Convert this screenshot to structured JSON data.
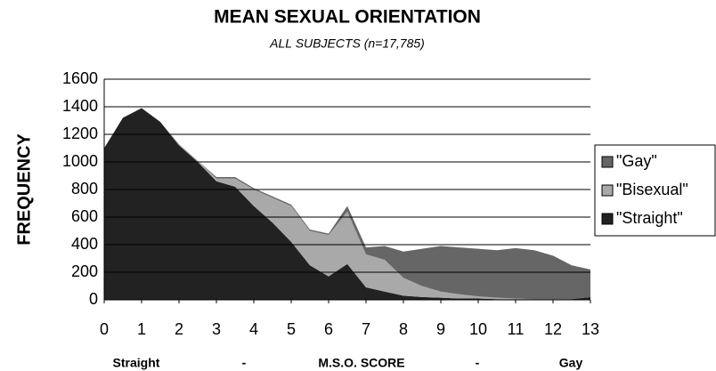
{
  "chart_data": {
    "type": "stacked_area",
    "title": "MEAN SEXUAL ORIENTATION",
    "subtitle": "ALL SUBJECTS (n=17,785)",
    "ylabel": "FREQUENCY",
    "xlabel": "M.S.O. SCORE",
    "annotations": [
      "Straight",
      "-",
      "-",
      "Gay"
    ],
    "x": [
      0,
      0.5,
      1,
      1.5,
      2,
      2.5,
      3,
      3.5,
      4,
      4.5,
      5,
      5.5,
      6,
      6.5,
      7,
      7.5,
      8,
      8.5,
      9,
      9.5,
      10,
      10.5,
      11,
      11.5,
      12,
      12.5,
      13
    ],
    "series": [
      {
        "name": "\"Straight\"",
        "color": "#222222",
        "values": [
          1100,
          1320,
          1390,
          1290,
          1120,
          1000,
          860,
          820,
          680,
          560,
          420,
          250,
          170,
          260,
          90,
          60,
          30,
          20,
          15,
          10,
          10,
          5,
          5,
          5,
          5,
          5,
          20
        ]
      },
      {
        "name": "\"Bisexual\"",
        "color": "#a9a9a9",
        "values": [
          0,
          0,
          0,
          0,
          10,
          10,
          20,
          60,
          120,
          180,
          260,
          250,
          300,
          380,
          240,
          230,
          130,
          80,
          45,
          30,
          15,
          10,
          5,
          0,
          0,
          0,
          0
        ]
      },
      {
        "name": "\"Gay\"",
        "color": "#666666",
        "values": [
          0,
          0,
          0,
          0,
          0,
          0,
          10,
          10,
          10,
          10,
          10,
          10,
          10,
          40,
          50,
          100,
          190,
          270,
          330,
          340,
          345,
          345,
          365,
          355,
          315,
          245,
          200
        ]
      }
    ],
    "xlim": [
      0,
      13
    ],
    "xticks": [
      0,
      1,
      2,
      3,
      4,
      5,
      6,
      7,
      8,
      9,
      10,
      11,
      12,
      13
    ],
    "ylim": [
      0,
      1600
    ],
    "yticks": [
      0,
      200,
      400,
      600,
      800,
      1000,
      1200,
      1400,
      1600
    ],
    "grid": true,
    "legend": "right"
  }
}
